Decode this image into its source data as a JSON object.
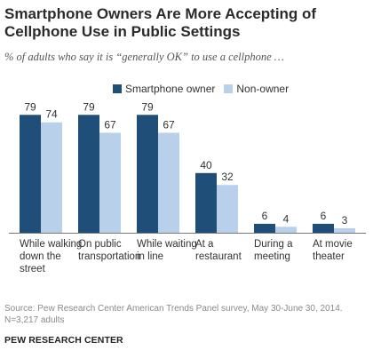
{
  "chart_data": {
    "type": "bar",
    "title": "Smartphone Owners Are More Accepting of Cellphone Use in Public Settings",
    "subtitle": "% of adults who say it is “generally OK” to use a cellphone …",
    "categories": [
      [
        "While walking",
        "down the",
        "street"
      ],
      [
        "On public",
        "transportation"
      ],
      [
        "While waiting",
        "in line"
      ],
      [
        "At a",
        "restaurant"
      ],
      [
        "During a",
        "meeting"
      ],
      [
        "At movie",
        "theater"
      ]
    ],
    "series": [
      {
        "name": "Smartphone owner",
        "values": [
          79,
          79,
          79,
          40,
          6,
          6
        ],
        "color": "#1f4e79"
      },
      {
        "name": "Non-owner",
        "values": [
          74,
          67,
          67,
          32,
          4,
          3
        ],
        "color": "#b8d0ea"
      }
    ],
    "ylim": [
      0,
      100
    ],
    "legend": "top",
    "grid": false
  },
  "source": "Source: Pew Research Center American Trends Panel survey, May 30-June 30, 2014. N=3,217 adults",
  "footer": "PEW RESEARCH CENTER"
}
